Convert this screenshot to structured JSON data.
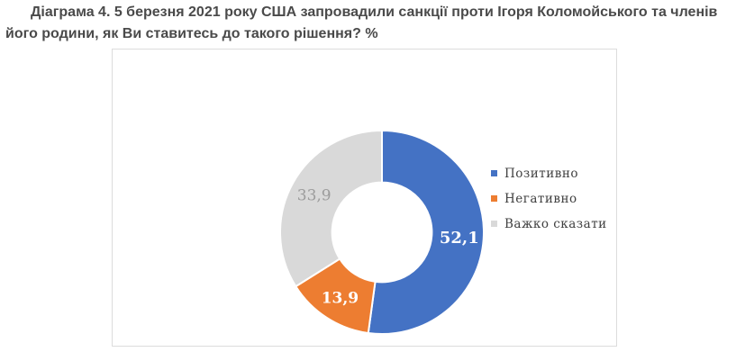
{
  "chart_data": {
    "type": "pie",
    "subtype": "doughnut",
    "title": "Діаграма 4. 5 березня 2021 року США запровадили санкції проти Ігоря Коломойського та членів його родини, як Ви ставитесь до такого рішення? %",
    "categories": [
      "Позитивно",
      "Негативно",
      "Важко сказати"
    ],
    "values": [
      52.1,
      13.9,
      33.9
    ],
    "value_labels": [
      "52,1",
      "13,9",
      "33,9"
    ],
    "colors": [
      "#4472C4",
      "#ED7D31",
      "#D9D9D9"
    ],
    "value_label_colors": [
      "#FFFFFF",
      "#FFFFFF",
      "#9C9C9C"
    ],
    "value_label_bold": [
      true,
      true,
      false
    ],
    "value_label_sizes": [
      18,
      17,
      17
    ],
    "slice_gap_color": "#FFFFFF",
    "legend_position": "right",
    "start_angle_deg": 0,
    "direction": "clockwise",
    "hole_ratio": 0.49,
    "unit": "%"
  }
}
